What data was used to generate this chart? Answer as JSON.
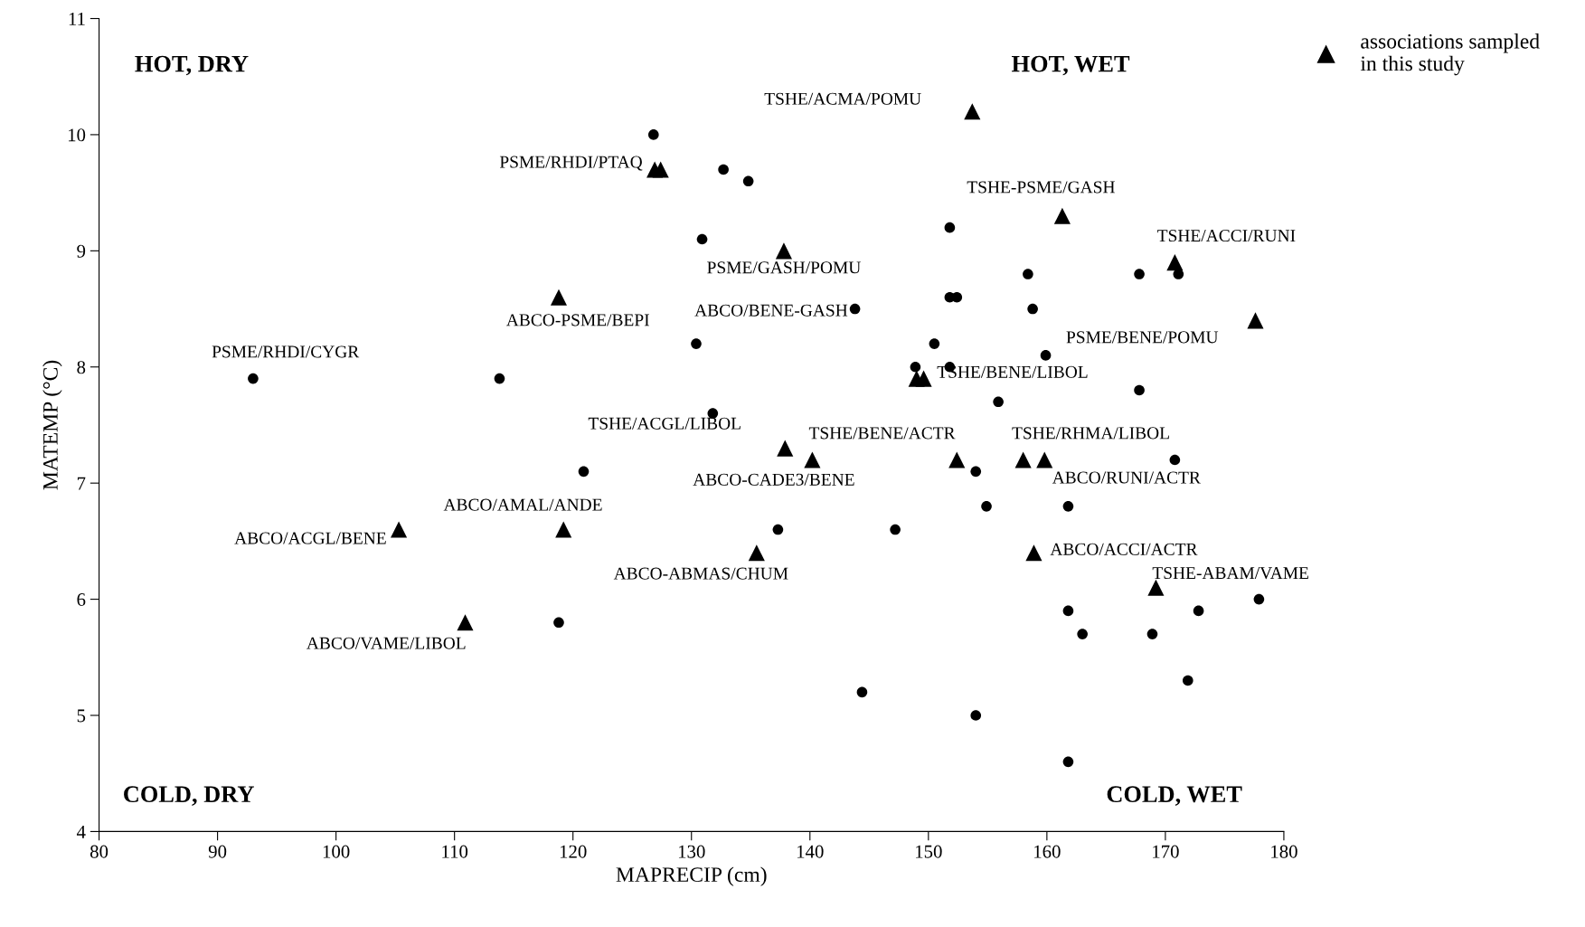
{
  "chart_data": {
    "type": "scatter",
    "xlabel": "MAPRECIP (cm)",
    "ylabel": "MATEMP (°C)",
    "xlim": [
      80,
      180
    ],
    "xticks": [
      80,
      90,
      100,
      110,
      120,
      130,
      140,
      150,
      160,
      170,
      180
    ],
    "ylim": [
      4,
      11
    ],
    "yticks": [
      4,
      5,
      6,
      7,
      8,
      9,
      10,
      11
    ],
    "grid": false,
    "legend": "top right",
    "series": [
      {
        "color": "#000000",
        "marker": "circle",
        "x": [
          93.0,
          113.8,
          126.8,
          132.7,
          134.8,
          130.9,
          143.8,
          130.4,
          131.8,
          120.9,
          137.3,
          147.2,
          118.8,
          144.4,
          154.0,
          161.8,
          151.8,
          151.8,
          152.4,
          150.5,
          148.9,
          151.8,
          158.4,
          158.8,
          159.9,
          155.9,
          154.0,
          154.9,
          161.8,
          167.8,
          171.1,
          167.8,
          170.8,
          161.8,
          163.0,
          168.9,
          172.8,
          177.9,
          171.9
        ],
        "values": [
          7.9,
          7.9,
          10.0,
          9.7,
          9.6,
          9.1,
          8.5,
          8.2,
          7.6,
          7.1,
          6.6,
          6.6,
          5.8,
          5.2,
          5.0,
          4.6,
          9.2,
          8.6,
          8.6,
          8.2,
          8.0,
          8.0,
          8.8,
          8.5,
          8.1,
          7.7,
          7.1,
          6.8,
          6.8,
          8.8,
          8.8,
          7.8,
          7.2,
          5.9,
          5.7,
          5.7,
          5.9,
          6.0,
          5.3
        ]
      },
      {
        "name": "associations sampled\nin this study",
        "color": "#000000",
        "marker": "triangle",
        "x": [
          153.7,
          126.9,
          127.4,
          137.8,
          161.3,
          170.8,
          118.8,
          177.6,
          149.0,
          149.6,
          137.9,
          140.2,
          152.4,
          158.0,
          159.8,
          105.3,
          119.2,
          135.5,
          158.9,
          169.2,
          110.9
        ],
        "values": [
          10.2,
          9.7,
          9.7,
          9.0,
          9.3,
          8.9,
          8.6,
          8.4,
          7.9,
          7.9,
          7.3,
          7.2,
          7.2,
          7.2,
          7.2,
          6.6,
          6.6,
          6.4,
          6.4,
          6.1,
          5.8
        ]
      }
    ],
    "annotations": [
      "HOT, DRY",
      "HOT, WET",
      "COLD, DRY",
      "COLD, WET",
      {
        "text": "TSHE/ACMA/POMU",
        "x": 153.7,
        "y": 10.2
      },
      {
        "text": "PSME/RHDI/PTAQ",
        "x": 126.9,
        "y": 9.7
      },
      {
        "text": "PSME/GASH/POMU",
        "x": 137.8,
        "y": 9.0
      },
      {
        "text": "TSHE-PSME/GASH",
        "x": 161.3,
        "y": 9.3
      },
      {
        "text": "TSHE/ACCI/RUNI",
        "x": 170.8,
        "y": 8.9
      },
      {
        "text": "ABCO-PSME/BEPI",
        "x": 118.8,
        "y": 8.6
      },
      {
        "text": "ABCO/BENE-GASH",
        "x": 143.8,
        "y": 8.5
      },
      {
        "text": "PSME/BENE/POMU",
        "x": 177.6,
        "y": 8.4
      },
      {
        "text": "PSME/RHDI/CYGR",
        "x": 93.0,
        "y": 7.9
      },
      {
        "text": "TSHE/BENE/LIBOL",
        "x": 149.6,
        "y": 7.9
      },
      {
        "text": "TSHE/ACGL/LIBOL",
        "x": 137.9,
        "y": 7.3
      },
      {
        "text": "TSHE/BENE/ACTR",
        "x": 140.2,
        "y": 7.2
      },
      {
        "text": "TSHE/RHMA/LIBOL",
        "x": 158.0,
        "y": 7.2
      },
      {
        "text": "ABCO-CADE3/BENE",
        "x": 140.2,
        "y": 7.2
      },
      {
        "text": "ABCO/RUNI/ACTR",
        "x": 159.8,
        "y": 7.2
      },
      {
        "text": "ABCO/ACGL/BENE",
        "x": 105.3,
        "y": 6.6
      },
      {
        "text": "ABCO/AMAL/ANDE",
        "x": 119.2,
        "y": 6.6
      },
      {
        "text": "ABCO-ABMAS/CHUM",
        "x": 135.5,
        "y": 6.4
      },
      {
        "text": "ABCO/ACCI/ACTR",
        "x": 158.9,
        "y": 6.4
      },
      {
        "text": "TSHE-ABAM/VAME",
        "x": 169.2,
        "y": 6.1
      },
      {
        "text": "ABCO/VAME/LIBOL",
        "x": 110.9,
        "y": 5.8
      }
    ]
  }
}
